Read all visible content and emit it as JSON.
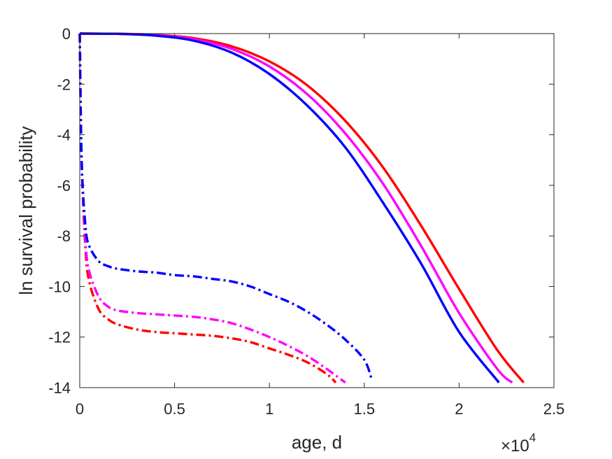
{
  "chart_data": {
    "type": "line",
    "xlabel": "age, d",
    "ylabel": "ln survival probability",
    "x_multiplier": {
      "base": "×10",
      "exponent": "4"
    },
    "xlim": [
      0,
      25000
    ],
    "ylim": [
      -14,
      0
    ],
    "xticks": [
      0,
      5000,
      10000,
      15000,
      20000,
      25000
    ],
    "xtick_labels": [
      "0",
      "0.5",
      "1",
      "1.5",
      "2",
      "2.5"
    ],
    "yticks": [
      0,
      -2,
      -4,
      -6,
      -8,
      -10,
      -12,
      -14
    ],
    "ytick_labels": [
      "0",
      "-2",
      "-4",
      "-6",
      "-8",
      "-10",
      "-12",
      "-14"
    ],
    "grid": false,
    "series": [
      {
        "color": "#ff0000",
        "style": "solid",
        "x": [
          0,
          2000,
          4000,
          6000,
          8000,
          10000,
          12000,
          14000,
          16000,
          18000,
          20000,
          22000,
          23400
        ],
        "y": [
          0,
          -0.01,
          -0.05,
          -0.18,
          -0.5,
          -1.1,
          -2.05,
          -3.45,
          -5.3,
          -7.6,
          -10.1,
          -12.5,
          -13.8
        ]
      },
      {
        "color": "#ff00ff",
        "style": "solid",
        "x": [
          0,
          2000,
          4000,
          6000,
          8000,
          10000,
          12000,
          14000,
          16000,
          18000,
          20000,
          22000,
          22800
        ],
        "y": [
          0,
          -0.01,
          -0.06,
          -0.22,
          -0.6,
          -1.3,
          -2.4,
          -3.95,
          -5.95,
          -8.4,
          -11.05,
          -13.25,
          -13.8
        ]
      },
      {
        "color": "#0000ff",
        "style": "solid",
        "x": [
          0,
          2000,
          4000,
          6000,
          8000,
          10000,
          12000,
          14000,
          16000,
          18000,
          20000,
          22100
        ],
        "y": [
          0,
          -0.01,
          -0.08,
          -0.28,
          -0.75,
          -1.6,
          -2.85,
          -4.5,
          -6.7,
          -9.1,
          -11.8,
          -13.8
        ]
      },
      {
        "color": "#ff0000",
        "style": "dashdot",
        "x": [
          0,
          100,
          300,
          500,
          1000,
          1500,
          2000,
          3000,
          4000,
          5000,
          6000,
          7000,
          8000,
          9000,
          10000,
          11000,
          12000,
          13000,
          13500
        ],
        "y": [
          0,
          -5,
          -8.5,
          -9.8,
          -10.9,
          -11.3,
          -11.5,
          -11.7,
          -11.8,
          -11.85,
          -11.9,
          -11.95,
          -12.05,
          -12.2,
          -12.45,
          -12.7,
          -13.0,
          -13.45,
          -13.8
        ]
      },
      {
        "color": "#ff00ff",
        "style": "dashdot",
        "x": [
          0,
          100,
          300,
          500,
          1000,
          1500,
          2000,
          3000,
          4000,
          5000,
          6000,
          7000,
          8000,
          9000,
          10000,
          11000,
          12000,
          13000,
          14000
        ],
        "y": [
          0,
          -5,
          -8.2,
          -9.4,
          -10.4,
          -10.8,
          -10.95,
          -11.05,
          -11.1,
          -11.15,
          -11.2,
          -11.3,
          -11.45,
          -11.7,
          -12.0,
          -12.35,
          -12.75,
          -13.25,
          -13.8
        ]
      },
      {
        "color": "#0000ff",
        "style": "dashdot",
        "x": [
          0,
          100,
          300,
          500,
          1000,
          1500,
          2000,
          3000,
          4000,
          5000,
          6000,
          7000,
          8000,
          9000,
          10000,
          11000,
          12000,
          13000,
          14000,
          15000,
          15400
        ],
        "y": [
          0,
          -5,
          -7.6,
          -8.4,
          -9.0,
          -9.2,
          -9.3,
          -9.4,
          -9.45,
          -9.55,
          -9.6,
          -9.7,
          -9.8,
          -10.0,
          -10.3,
          -10.6,
          -11.0,
          -11.5,
          -12.1,
          -12.9,
          -13.7
        ]
      }
    ]
  }
}
